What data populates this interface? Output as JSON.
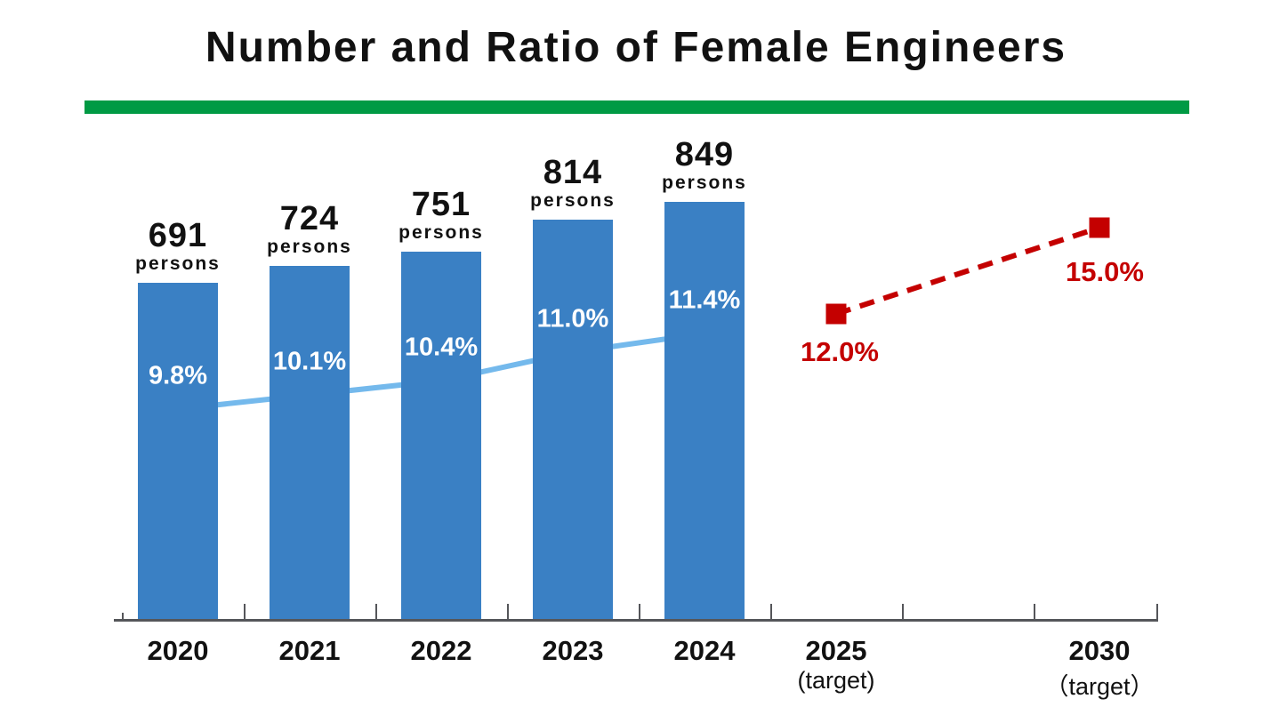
{
  "page": {
    "background": "#ffffff"
  },
  "colors": {
    "title_text": "#111111",
    "accent_rule_green": "#009a44",
    "bar_blue": "#3a80c4",
    "ratio_line_blue": "#74b9ec",
    "ratio_marker_blue": "#7cc0f0",
    "target_red": "#c40000",
    "axis_gray": "#55565a",
    "label_on_bar": "#ffffff",
    "value_label_text": "#111111"
  },
  "chart_data": {
    "type": "combo: bar + line + dashed target line",
    "title": "Number and Ratio of Female Engineers",
    "categories": [
      "2020",
      "2021",
      "2022",
      "2023",
      "2024",
      "2025",
      "",
      "2030"
    ],
    "category_notes": [
      "",
      "",
      "",
      "",
      "",
      "(target)",
      "",
      "（target）"
    ],
    "series": [
      {
        "name": "Number of female engineers",
        "type": "bar",
        "unit": "persons",
        "unit_label": "persons",
        "x": [
          "2020",
          "2021",
          "2022",
          "2023",
          "2024"
        ],
        "values": [
          691,
          724,
          751,
          814,
          849
        ],
        "value_labels": [
          "691",
          "724",
          "751",
          "814",
          "849"
        ],
        "color": "#3a80c4"
      },
      {
        "name": "Ratio of female engineers",
        "type": "line",
        "unit": "%",
        "marker": "square",
        "x": [
          "2020",
          "2021",
          "2022",
          "2023",
          "2024"
        ],
        "values": [
          9.8,
          10.1,
          10.4,
          11.0,
          11.4
        ],
        "value_labels": [
          "9.8%",
          "10.1%",
          "10.4%",
          "11.0%",
          "11.4%"
        ],
        "color": "#74b9ec"
      },
      {
        "name": "Ratio targets",
        "type": "dashed_line",
        "unit": "%",
        "marker": "square",
        "x": [
          "2025",
          "2030"
        ],
        "values": [
          12.0,
          15.0
        ],
        "value_labels": [
          "12.0%",
          "15.0%"
        ],
        "color": "#c40000"
      }
    ],
    "legend": false,
    "grid": false,
    "value_axes_visible": false,
    "x_axis_line": true
  }
}
